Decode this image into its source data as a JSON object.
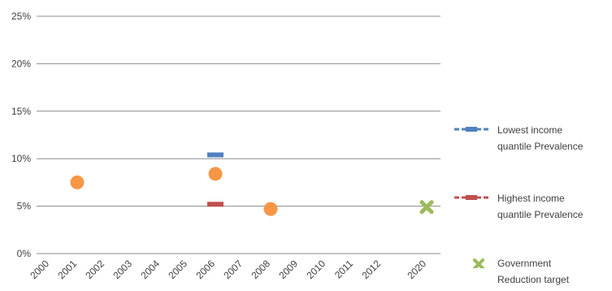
{
  "chart_data": {
    "type": "scatter",
    "title": "",
    "xlabel": "",
    "ylabel": "",
    "x_categories": [
      "2000",
      "2001",
      "2002",
      "2003",
      "2004",
      "2005",
      "2006",
      "2007",
      "2008",
      "2009",
      "2010",
      "2011",
      "2012",
      "2020"
    ],
    "y_ticks": [
      "0%",
      "5%",
      "10%",
      "15%",
      "20%",
      "25%"
    ],
    "ylim": [
      0,
      25
    ],
    "grid": "horizontal",
    "legend_position": "right",
    "series": [
      {
        "name": "Lowest income quantile Prevalence",
        "marker": "dash",
        "color": "#4f81bd",
        "points": [
          {
            "x": "2006",
            "y": 10.4
          }
        ]
      },
      {
        "name": "Highest income quantile Prevalence",
        "marker": "dash",
        "color": "#c0504d",
        "points": [
          {
            "x": "2006",
            "y": 5.2
          }
        ]
      },
      {
        "name": "",
        "marker": "circle",
        "color": "#f79646",
        "points": [
          {
            "x": "2001",
            "y": 7.5
          },
          {
            "x": "2006",
            "y": 8.4
          },
          {
            "x": "2008",
            "y": 4.7
          }
        ]
      },
      {
        "name": "Government Reduction target",
        "marker": "x",
        "color": "#9bbb59",
        "points": [
          {
            "x": "2020",
            "y": 4.9
          }
        ]
      }
    ]
  },
  "legend": {
    "items": [
      {
        "label_line1": "Lowest income",
        "label_line2": "quantile Prevalence",
        "icon": "dash-line-blue"
      },
      {
        "label_line1": "Highest income",
        "label_line2": "quantile Prevalence",
        "icon": "dash-line-red"
      },
      {
        "label_line1": "Government",
        "label_line2": "Reduction target",
        "icon": "x-marker-green"
      }
    ]
  }
}
